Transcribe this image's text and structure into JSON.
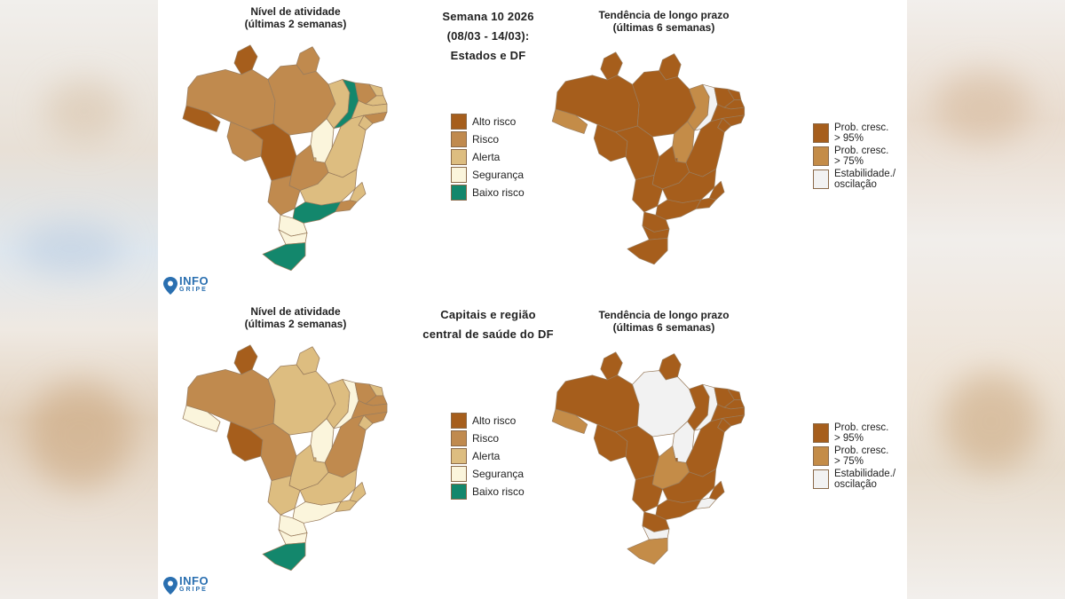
{
  "colors": {
    "alto_risco": "#a65e1c",
    "risco": "#c08a4e",
    "alerta": "#ddbd80",
    "seguranca": "#fbf5dc",
    "baixo_risco": "#13876c",
    "prob95": "#a65e1c",
    "prob75": "#c48c48",
    "estab": "#f2f2f2"
  },
  "top": {
    "left_title_1": "Nível de atividade",
    "left_title_2": "(últimas 2 semanas)",
    "center_1": "Semana 10 2026",
    "center_2": "(08/03 - 14/03):",
    "center_3": "Estados e DF",
    "right_title_1": "Tendência de longo prazo",
    "right_title_2": "(últimas 6 semanas)"
  },
  "bottom": {
    "left_title_1": "Nível de atividade",
    "left_title_2": "(últimas 2 semanas)",
    "center_1": "Capitais e região",
    "center_2": "central de saúde do DF",
    "right_title_1": "Tendência de longo prazo",
    "right_title_2": "(últimas 6 semanas)"
  },
  "legend_activity": [
    "Alto risco",
    "Risco",
    "Alerta",
    "Segurança",
    "Baixo risco"
  ],
  "legend_trend": [
    {
      "l1": "Prob. cresc.",
      "l2": "> 95%"
    },
    {
      "l1": "Prob. cresc.",
      "l2": "> 75%"
    },
    {
      "l1": "Estabilidade./",
      "l2": "oscilação"
    }
  ],
  "logo": {
    "line1": "INFO",
    "line2": "GRIPE"
  },
  "maps": {
    "top_activity": {
      "AM": "risco",
      "RR": "alto_risco",
      "AP": "risco",
      "PA": "risco",
      "AC": "alto_risco",
      "RO": "risco",
      "MT": "alto_risco",
      "TO": "seguranca",
      "MA": "alerta",
      "PI": "baixo_risco",
      "CE": "risco",
      "RN": "alerta",
      "PB": "alerta",
      "PE": "alerta",
      "AL": "risco",
      "SE": "alerta",
      "BA": "alerta",
      "GO": "risco",
      "DF": "alerta",
      "MG": "alerta",
      "ES": "alerta",
      "RJ": "risco",
      "SP": "baixo_risco",
      "MS": "risco",
      "PR": "seguranca",
      "SC": "seguranca",
      "RS": "baixo_risco"
    },
    "top_trend": {
      "AM": "prob95",
      "RR": "prob95",
      "AP": "prob95",
      "PA": "prob95",
      "AC": "prob75",
      "RO": "prob95",
      "MT": "prob95",
      "TO": "prob75",
      "MA": "prob75",
      "PI": "estab",
      "CE": "prob95",
      "RN": "prob95",
      "PB": "prob95",
      "PE": "prob95",
      "AL": "prob95",
      "SE": "prob95",
      "BA": "prob95",
      "GO": "prob95",
      "DF": "prob95",
      "MG": "prob95",
      "ES": "prob95",
      "RJ": "prob95",
      "SP": "prob95",
      "MS": "prob95",
      "PR": "prob95",
      "SC": "prob95",
      "RS": "prob95"
    },
    "bottom_activity": {
      "AM": "risco",
      "RR": "alto_risco",
      "AP": "alerta",
      "PA": "alerta",
      "AC": "seguranca",
      "RO": "alto_risco",
      "MT": "risco",
      "TO": "seguranca",
      "MA": "alerta",
      "PI": "seguranca",
      "CE": "risco",
      "RN": "alerta",
      "PB": "risco",
      "PE": "risco",
      "AL": "risco",
      "SE": "alerta",
      "BA": "risco",
      "GO": "alerta",
      "DF": "alerta",
      "MG": "alerta",
      "ES": "alerta",
      "RJ": "alerta",
      "SP": "seguranca",
      "MS": "alerta",
      "PR": "seguranca",
      "SC": "seguranca",
      "RS": "baixo_risco"
    },
    "bottom_trend": {
      "AM": "prob95",
      "RR": "prob95",
      "AP": "prob95",
      "PA": "estab",
      "AC": "prob75",
      "RO": "prob95",
      "MT": "prob95",
      "TO": "estab",
      "MA": "prob95",
      "PI": "estab",
      "CE": "prob95",
      "RN": "prob95",
      "PB": "prob95",
      "PE": "prob95",
      "AL": "prob95",
      "SE": "prob95",
      "BA": "prob95",
      "GO": "prob75",
      "DF": "prob95",
      "MG": "prob95",
      "ES": "prob95",
      "RJ": "estab",
      "SP": "prob95",
      "MS": "prob95",
      "PR": "prob95",
      "SC": "estab",
      "RS": "prob75"
    }
  }
}
